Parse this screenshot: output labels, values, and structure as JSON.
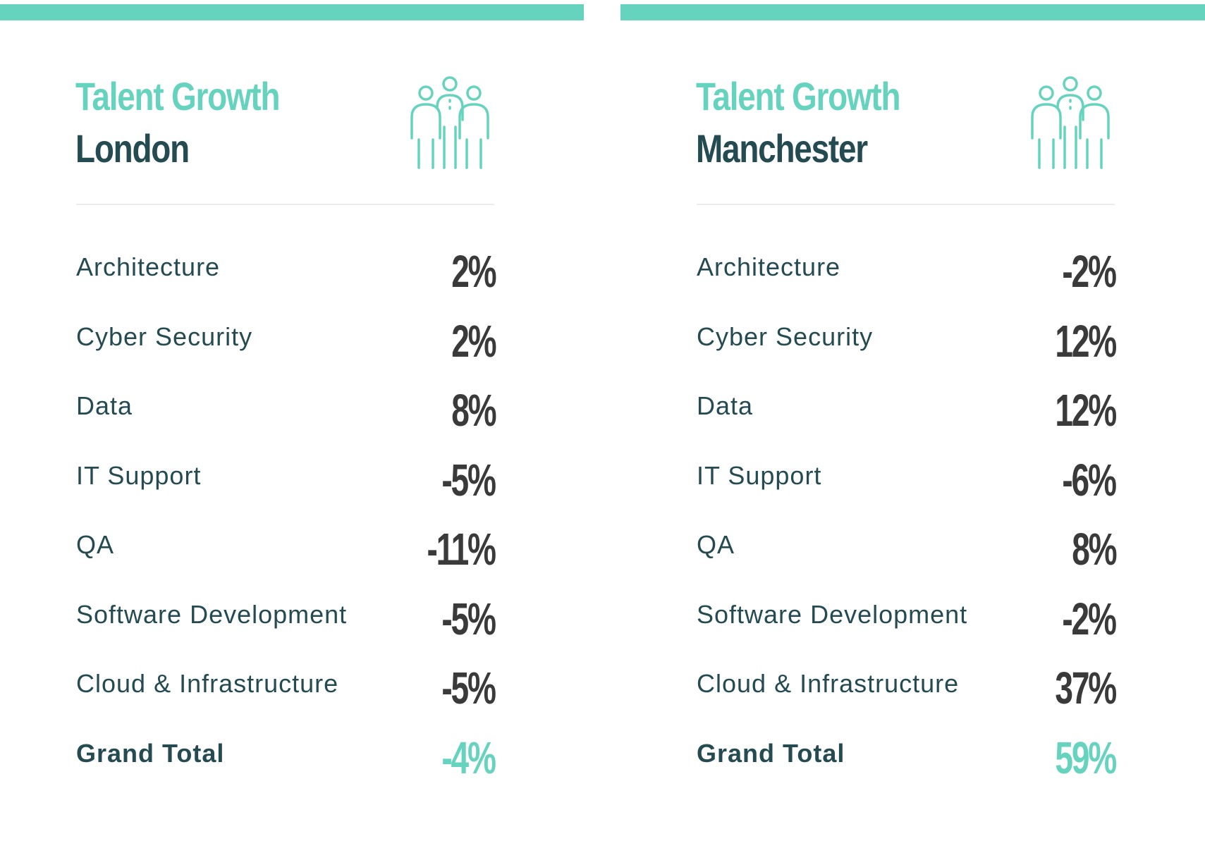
{
  "colors": {
    "accent": "#66d3bf",
    "dark_text": "#244a52",
    "value_text": "#3a3a3a"
  },
  "panels": [
    {
      "title": "Talent Growth",
      "city": "London",
      "icon": "people-group-icon",
      "rows": [
        {
          "label": "Architecture",
          "value": "2%"
        },
        {
          "label": "Cyber Security",
          "value": "2%"
        },
        {
          "label": "Data",
          "value": "8%"
        },
        {
          "label": "IT Support",
          "value": "-5%"
        },
        {
          "label": "QA",
          "value": "-11%"
        },
        {
          "label": "Software Development",
          "value": "-5%"
        },
        {
          "label": "Cloud & Infrastructure",
          "value": "-5%"
        }
      ],
      "total": {
        "label": "Grand Total",
        "value": "-4%"
      }
    },
    {
      "title": "Talent Growth",
      "city": "Manchester",
      "icon": "people-group-icon",
      "rows": [
        {
          "label": "Architecture",
          "value": "-2%"
        },
        {
          "label": "Cyber Security",
          "value": "12%"
        },
        {
          "label": "Data",
          "value": "12%"
        },
        {
          "label": "IT Support",
          "value": "-6%"
        },
        {
          "label": "QA",
          "value": "8%"
        },
        {
          "label": "Software Development",
          "value": "-2%"
        },
        {
          "label": "Cloud & Infrastructure",
          "value": "37%"
        }
      ],
      "total": {
        "label": "Grand Total",
        "value": "59%"
      }
    }
  ]
}
